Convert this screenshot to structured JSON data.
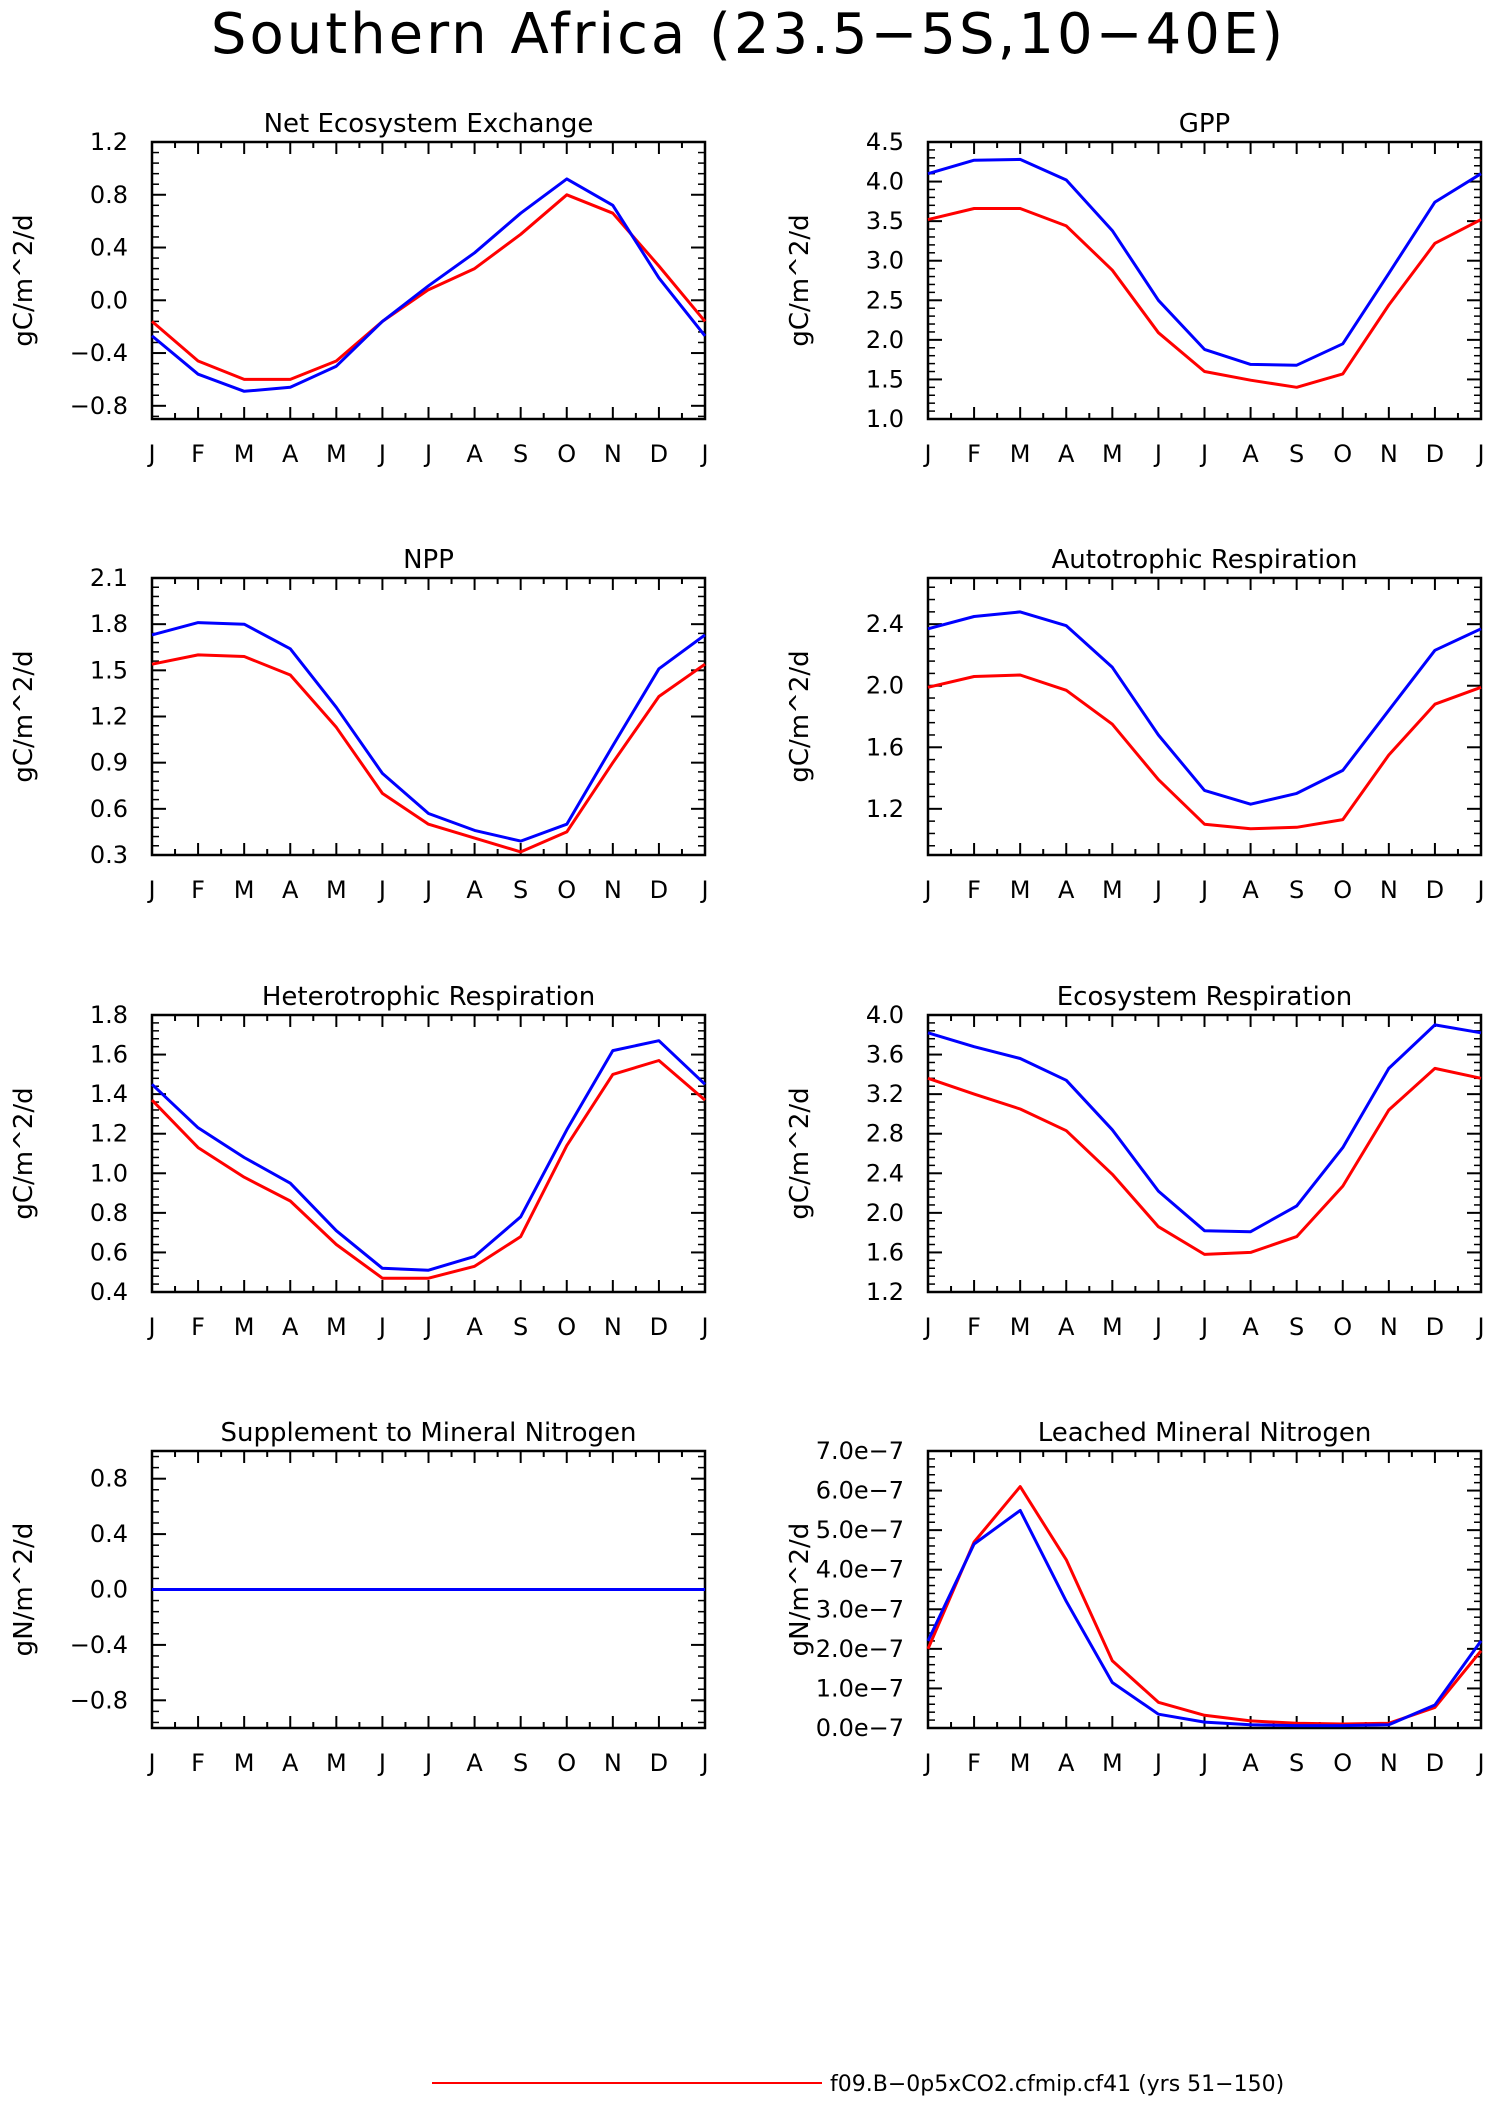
{
  "title": "Southern Africa (23.5−5S,10−40E)",
  "months": [
    "J",
    "F",
    "M",
    "A",
    "M",
    "J",
    "J",
    "A",
    "S",
    "O",
    "N",
    "D",
    "J"
  ],
  "colors": {
    "red": "#ff0000",
    "blue": "#0000ff"
  },
  "legend": {
    "entries": [
      {
        "label": "f09.B−0p5xCO2.cfmip.cf41 (yrs 51−150)",
        "color": "#ff0000"
      }
    ]
  },
  "chart_data": [
    {
      "type": "line",
      "title": "Net Ecosystem Exchange",
      "ylabel": "gC/m^2/d",
      "ylim": [
        -0.9,
        1.2
      ],
      "yticks": [
        -0.8,
        -0.4,
        0.0,
        0.4,
        0.8,
        1.2
      ],
      "ytick_labels": [
        "−0.8",
        "−0.4",
        "0.0",
        "0.4",
        "0.8",
        "1.2"
      ],
      "x": [
        "J",
        "F",
        "M",
        "A",
        "M",
        "J",
        "J",
        "A",
        "S",
        "O",
        "N",
        "D",
        "J"
      ],
      "series": [
        {
          "color": "#ff0000",
          "values": [
            -0.16,
            -0.46,
            -0.6,
            -0.6,
            -0.46,
            -0.16,
            0.08,
            0.24,
            0.5,
            0.8,
            0.66,
            0.26,
            -0.16
          ]
        },
        {
          "color": "#0000ff",
          "values": [
            -0.27,
            -0.56,
            -0.69,
            -0.66,
            -0.5,
            -0.16,
            0.11,
            0.36,
            0.66,
            0.92,
            0.72,
            0.17,
            -0.27
          ]
        }
      ]
    },
    {
      "type": "line",
      "title": "GPP",
      "ylabel": "gC/m^2/d",
      "ylim": [
        1.0,
        4.5
      ],
      "yticks": [
        1.0,
        1.5,
        2.0,
        2.5,
        3.0,
        3.5,
        4.0,
        4.5
      ],
      "ytick_labels": [
        "1.0",
        "1.5",
        "2.0",
        "2.5",
        "3.0",
        "3.5",
        "4.0",
        "4.5"
      ],
      "x": [
        "J",
        "F",
        "M",
        "A",
        "M",
        "J",
        "J",
        "A",
        "S",
        "O",
        "N",
        "D",
        "J"
      ],
      "series": [
        {
          "color": "#ff0000",
          "values": [
            3.52,
            3.66,
            3.66,
            3.44,
            2.88,
            2.09,
            1.6,
            1.49,
            1.4,
            1.57,
            2.44,
            3.22,
            3.52
          ]
        },
        {
          "color": "#0000ff",
          "values": [
            4.1,
            4.27,
            4.28,
            4.02,
            3.38,
            2.5,
            1.88,
            1.69,
            1.68,
            1.95,
            2.84,
            3.74,
            4.1
          ]
        }
      ]
    },
    {
      "type": "line",
      "title": "NPP",
      "ylabel": "gC/m^2/d",
      "ylim": [
        0.3,
        2.1
      ],
      "yticks": [
        0.3,
        0.6,
        0.9,
        1.2,
        1.5,
        1.8,
        2.1
      ],
      "ytick_labels": [
        "0.3",
        "0.6",
        "0.9",
        "1.2",
        "1.5",
        "1.8",
        "2.1"
      ],
      "x": [
        "J",
        "F",
        "M",
        "A",
        "M",
        "J",
        "J",
        "A",
        "S",
        "O",
        "N",
        "D",
        "J"
      ],
      "series": [
        {
          "color": "#ff0000",
          "values": [
            1.54,
            1.6,
            1.59,
            1.47,
            1.13,
            0.7,
            0.5,
            0.41,
            0.32,
            0.45,
            0.9,
            1.33,
            1.54
          ]
        },
        {
          "color": "#0000ff",
          "values": [
            1.73,
            1.81,
            1.8,
            1.64,
            1.26,
            0.83,
            0.57,
            0.46,
            0.39,
            0.5,
            1.01,
            1.51,
            1.73
          ]
        }
      ]
    },
    {
      "type": "line",
      "title": "Autotrophic Respiration",
      "ylabel": "gC/m^2/d",
      "ylim": [
        0.9,
        2.7
      ],
      "yticks": [
        1.2,
        1.6,
        2.0,
        2.4
      ],
      "ytick_labels": [
        "1.2",
        "1.6",
        "2.0",
        "2.4"
      ],
      "x": [
        "J",
        "F",
        "M",
        "A",
        "M",
        "J",
        "J",
        "A",
        "S",
        "O",
        "N",
        "D",
        "J"
      ],
      "series": [
        {
          "color": "#ff0000",
          "values": [
            1.99,
            2.06,
            2.07,
            1.97,
            1.75,
            1.39,
            1.1,
            1.07,
            1.08,
            1.13,
            1.55,
            1.88,
            1.99
          ]
        },
        {
          "color": "#0000ff",
          "values": [
            2.37,
            2.45,
            2.48,
            2.39,
            2.12,
            1.68,
            1.32,
            1.23,
            1.3,
            1.45,
            1.84,
            2.23,
            2.37
          ]
        }
      ]
    },
    {
      "type": "line",
      "title": "Heterotrophic Respiration",
      "ylabel": "gC/m^2/d",
      "ylim": [
        0.4,
        1.8
      ],
      "yticks": [
        0.4,
        0.6,
        0.8,
        1.0,
        1.2,
        1.4,
        1.6,
        1.8
      ],
      "ytick_labels": [
        "0.4",
        "0.6",
        "0.8",
        "1.0",
        "1.2",
        "1.4",
        "1.6",
        "1.8"
      ],
      "x": [
        "J",
        "F",
        "M",
        "A",
        "M",
        "J",
        "J",
        "A",
        "S",
        "O",
        "N",
        "D",
        "J"
      ],
      "series": [
        {
          "color": "#ff0000",
          "values": [
            1.37,
            1.13,
            0.98,
            0.86,
            0.64,
            0.47,
            0.47,
            0.53,
            0.68,
            1.14,
            1.5,
            1.57,
            1.37
          ]
        },
        {
          "color": "#0000ff",
          "values": [
            1.45,
            1.23,
            1.08,
            0.95,
            0.71,
            0.52,
            0.51,
            0.58,
            0.78,
            1.22,
            1.62,
            1.67,
            1.45
          ]
        }
      ]
    },
    {
      "type": "line",
      "title": "Ecosystem Respiration",
      "ylabel": "gC/m^2/d",
      "ylim": [
        1.2,
        4.0
      ],
      "yticks": [
        1.2,
        1.6,
        2.0,
        2.4,
        2.8,
        3.2,
        3.6,
        4.0
      ],
      "ytick_labels": [
        "1.2",
        "1.6",
        "2.0",
        "2.4",
        "2.8",
        "3.2",
        "3.6",
        "4.0"
      ],
      "x": [
        "J",
        "F",
        "M",
        "A",
        "M",
        "J",
        "J",
        "A",
        "S",
        "O",
        "N",
        "D",
        "J"
      ],
      "series": [
        {
          "color": "#ff0000",
          "values": [
            3.36,
            3.2,
            3.05,
            2.83,
            2.39,
            1.86,
            1.58,
            1.6,
            1.76,
            2.27,
            3.04,
            3.46,
            3.36
          ]
        },
        {
          "color": "#0000ff",
          "values": [
            3.82,
            3.68,
            3.56,
            3.34,
            2.84,
            2.22,
            1.82,
            1.81,
            2.07,
            2.66,
            3.46,
            3.9,
            3.82
          ]
        }
      ]
    },
    {
      "type": "line",
      "title": "Supplement to Mineral Nitrogen",
      "ylabel": "gN/m^2/d",
      "ylim": [
        -1.0,
        1.0
      ],
      "yticks": [
        -0.8,
        -0.4,
        0.0,
        0.4,
        0.8
      ],
      "ytick_labels": [
        "−0.8",
        "−0.4",
        "0.0",
        "0.4",
        "0.8"
      ],
      "x": [
        "J",
        "F",
        "M",
        "A",
        "M",
        "J",
        "J",
        "A",
        "S",
        "O",
        "N",
        "D",
        "J"
      ],
      "series": [
        {
          "color": "#ff0000",
          "values": [
            0,
            0,
            0,
            0,
            0,
            0,
            0,
            0,
            0,
            0,
            0,
            0,
            0
          ]
        },
        {
          "color": "#0000ff",
          "values": [
            0,
            0,
            0,
            0,
            0,
            0,
            0,
            0,
            0,
            0,
            0,
            0,
            0
          ]
        }
      ]
    },
    {
      "type": "line",
      "title": "Leached Mineral Nitrogen",
      "ylabel": "gN/m^2/d",
      "ylim": [
        0,
        7e-07
      ],
      "yticks": [
        0,
        1e-07,
        2e-07,
        3e-07,
        4e-07,
        5e-07,
        6e-07,
        7e-07
      ],
      "ytick_labels": [
        "0.0e−7",
        "1.0e−7",
        "2.0e−7",
        "3.0e−7",
        "4.0e−7",
        "5.0e−7",
        "6.0e−7",
        "7.0e−7"
      ],
      "x": [
        "J",
        "F",
        "M",
        "A",
        "M",
        "J",
        "J",
        "A",
        "S",
        "O",
        "N",
        "D",
        "J"
      ],
      "series": [
        {
          "color": "#ff0000",
          "values": [
            2e-07,
            4.7e-07,
            6.1e-07,
            4.25e-07,
            1.7e-07,
            6.5e-08,
            3.2e-08,
            1.8e-08,
            1.2e-08,
            1e-08,
            1.2e-08,
            5.2e-08,
            1.95e-07
          ]
        },
        {
          "color": "#0000ff",
          "values": [
            2.2e-07,
            4.65e-07,
            5.5e-07,
            3.2e-07,
            1.15e-07,
            3.5e-08,
            1.5e-08,
            8e-09,
            6e-09,
            6e-09,
            8e-09,
            5.8e-08,
            2.2e-07
          ]
        }
      ]
    }
  ]
}
